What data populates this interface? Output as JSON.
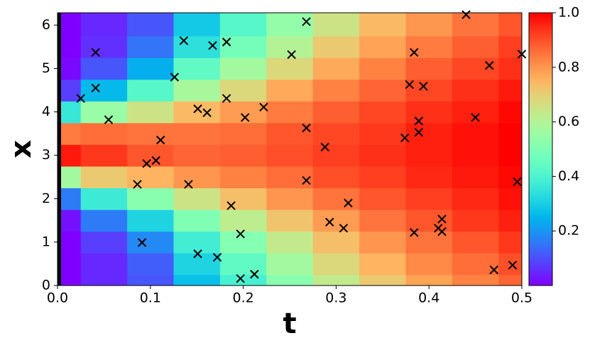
{
  "chart_data": {
    "type": "heatmap",
    "xlabel": "t",
    "ylabel": "x",
    "colormap": "rainbow",
    "clim": [
      0,
      1
    ],
    "cticks": [
      0.2,
      0.4,
      0.6,
      0.8,
      {
        "value": 1,
        "label": "1.0"
      }
    ],
    "xlim": [
      0,
      0.5
    ],
    "ylim": [
      0,
      6.283
    ],
    "xticks": [
      {
        "value": 0,
        "label": "0.0"
      },
      0.1,
      0.2,
      0.3,
      0.4,
      0.5
    ],
    "yticks": [
      0,
      1,
      2,
      3,
      4,
      5,
      6
    ],
    "x": [
      0,
      0.05,
      0.1,
      0.15,
      0.2,
      0.25,
      0.3,
      0.35,
      0.4,
      0.45,
      0.5
    ],
    "y": [
      0,
      0.5,
      1,
      1.5,
      2,
      2.5,
      3,
      3.5,
      4,
      4.5,
      5,
      5.5,
      6
    ],
    "z": [
      [
        0,
        0,
        0,
        0.02,
        0.16,
        0.57,
        0.97,
        0.84,
        0.36,
        0.08,
        0.01,
        0,
        0
      ],
      [
        0.05,
        0.05,
        0.08,
        0.16,
        0.37,
        0.71,
        0.93,
        0.86,
        0.55,
        0.26,
        0.11,
        0.06,
        0.05
      ],
      [
        0.11,
        0.12,
        0.18,
        0.31,
        0.52,
        0.75,
        0.89,
        0.85,
        0.65,
        0.42,
        0.24,
        0.15,
        0.11
      ],
      [
        0.27,
        0.31,
        0.38,
        0.5,
        0.65,
        0.8,
        0.87,
        0.85,
        0.74,
        0.58,
        0.44,
        0.34,
        0.29
      ],
      [
        0.39,
        0.44,
        0.51,
        0.62,
        0.73,
        0.83,
        0.88,
        0.86,
        0.79,
        0.68,
        0.57,
        0.48,
        0.42
      ],
      [
        0.52,
        0.57,
        0.63,
        0.72,
        0.8,
        0.86,
        0.9,
        0.89,
        0.84,
        0.77,
        0.68,
        0.6,
        0.54
      ],
      [
        0.63,
        0.68,
        0.73,
        0.79,
        0.85,
        0.9,
        0.92,
        0.91,
        0.88,
        0.83,
        0.77,
        0.71,
        0.65
      ],
      [
        0.71,
        0.75,
        0.8,
        0.85,
        0.89,
        0.92,
        0.94,
        0.93,
        0.91,
        0.87,
        0.83,
        0.78,
        0.74
      ],
      [
        0.78,
        0.82,
        0.85,
        0.89,
        0.92,
        0.95,
        0.96,
        0.96,
        0.94,
        0.91,
        0.88,
        0.84,
        0.8
      ],
      [
        0.83,
        0.86,
        0.89,
        0.93,
        0.95,
        0.97,
        0.98,
        0.98,
        0.96,
        0.94,
        0.91,
        0.88,
        0.85
      ],
      [
        0.87,
        0.9,
        0.93,
        0.96,
        0.98,
        0.99,
        1.0,
        1.0,
        0.99,
        0.97,
        0.94,
        0.92,
        0.89
      ]
    ],
    "scatter": {
      "marker": "x",
      "color": "#000000",
      "x": [
        0.025,
        0.041,
        0.041,
        0.055,
        0.086,
        0.091,
        0.096,
        0.106,
        0.111,
        0.126,
        0.136,
        0.141,
        0.151,
        0.151,
        0.161,
        0.167,
        0.172,
        0.182,
        0.182,
        0.187,
        0.197,
        0.197,
        0.202,
        0.212,
        0.222,
        0.252,
        0.268,
        0.268,
        0.268,
        0.288,
        0.293,
        0.308,
        0.313,
        0.374,
        0.379,
        0.384,
        0.384,
        0.389,
        0.389,
        0.394,
        0.41,
        0.414,
        0.414,
        0.44,
        0.45,
        0.465,
        0.47,
        0.49,
        0.495,
        0.5
      ],
      "y": [
        4.31,
        5.37,
        4.55,
        3.82,
        2.33,
        0.99,
        2.81,
        2.88,
        3.35,
        4.8,
        5.64,
        2.33,
        0.73,
        4.07,
        3.98,
        5.53,
        0.65,
        5.61,
        4.31,
        1.84,
        0.16,
        1.19,
        3.87,
        0.26,
        4.11,
        5.32,
        6.08,
        3.63,
        2.42,
        3.19,
        1.46,
        1.32,
        1.9,
        3.4,
        4.63,
        5.37,
        1.22,
        3.79,
        3.53,
        4.59,
        1.32,
        1.53,
        1.24,
        6.24,
        3.87,
        5.07,
        0.36,
        0.47,
        2.39,
        5.33
      ]
    }
  }
}
